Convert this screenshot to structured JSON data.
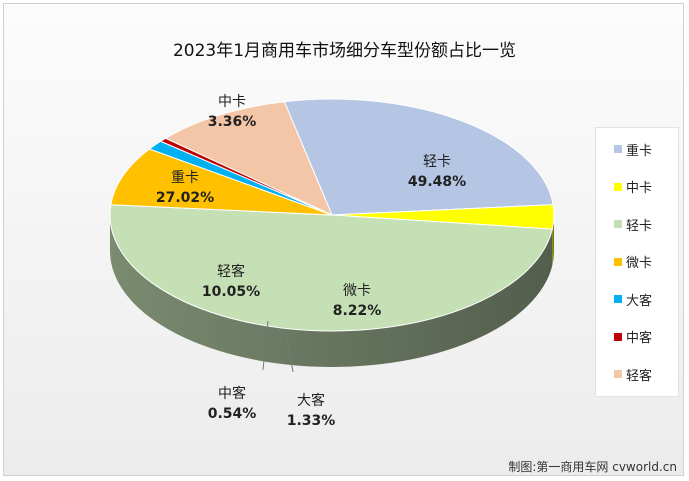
{
  "chart_data": {
    "type": "pie",
    "title": "2023年1月商用车市场细分车型份额占比一览",
    "slices": [
      {
        "name": "重卡",
        "label": "27.02%",
        "value": 27.02,
        "color": "#b4c6e4"
      },
      {
        "name": "中卡",
        "label": "3.36%",
        "value": 3.36,
        "color": "#ffff00"
      },
      {
        "name": "轻卡",
        "label": "49.48%",
        "value": 49.48,
        "color": "#c5e0b4"
      },
      {
        "name": "微卡",
        "label": "8.22%",
        "value": 8.22,
        "color": "#ffc000"
      },
      {
        "name": "大客",
        "label": "1.33%",
        "value": 1.33,
        "color": "#00b0f0"
      },
      {
        "name": "中客",
        "label": "0.54%",
        "value": 0.54,
        "color": "#c00000"
      },
      {
        "name": "轻客",
        "label": "10.05%",
        "value": 10.05,
        "color": "#f4c6a8"
      }
    ],
    "legend_position": "right"
  },
  "credit": "制图:第一商用车网 cvworld.cn"
}
